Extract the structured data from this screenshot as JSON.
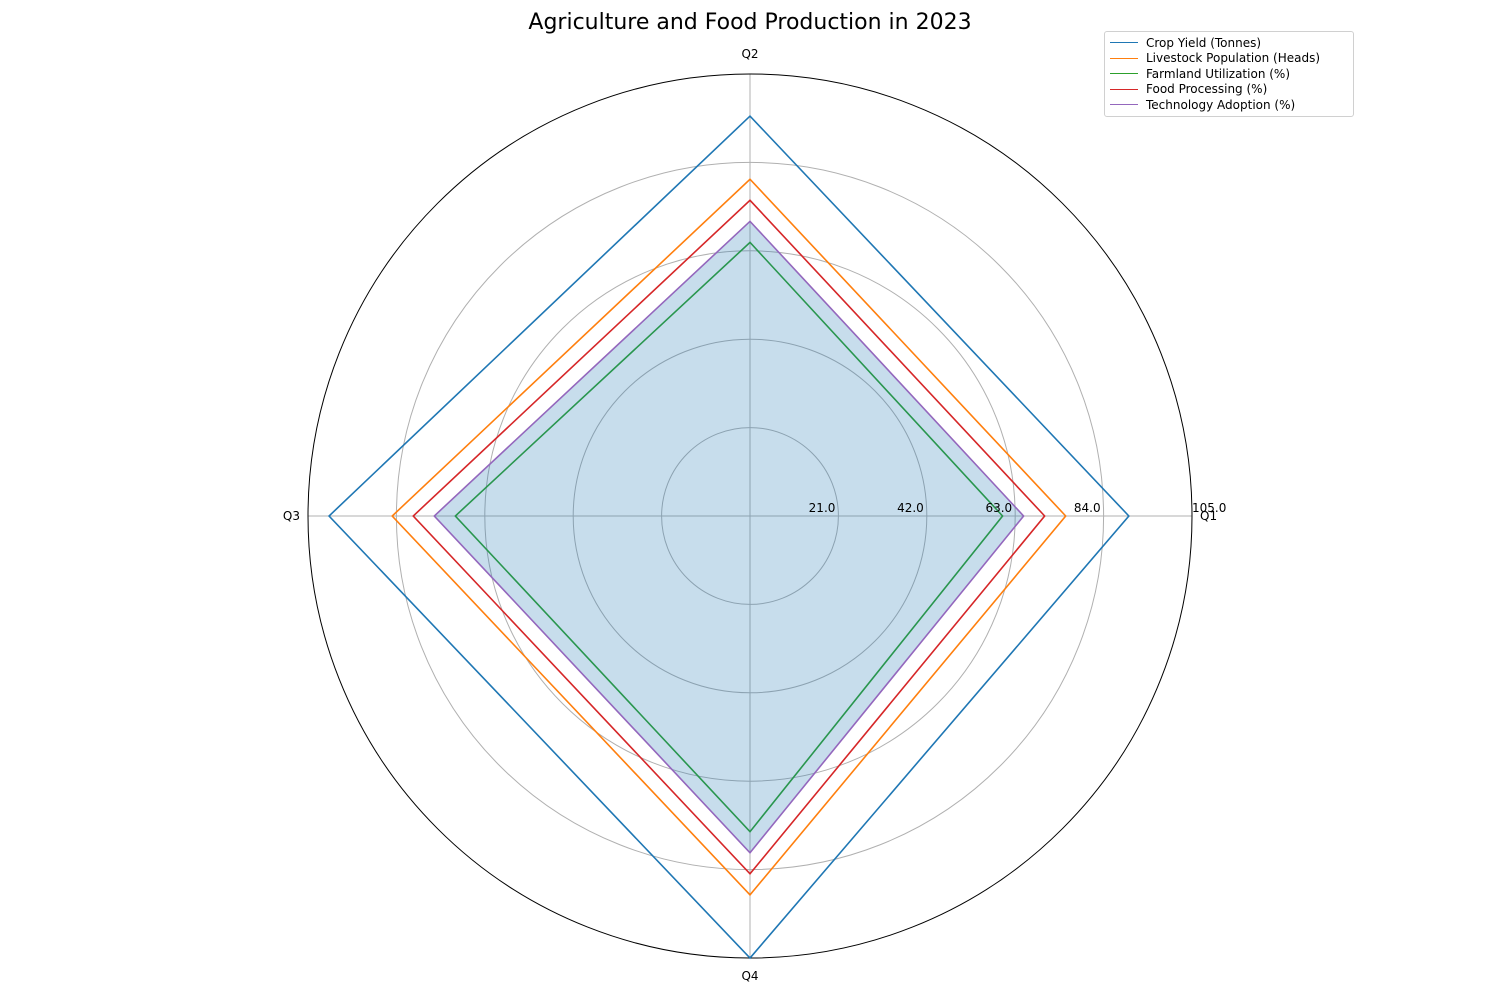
{
  "chart_data": {
    "type": "radar",
    "title": "Agriculture and Food Production in 2023",
    "categories": [
      "Q1",
      "Q2",
      "Q3",
      "Q4"
    ],
    "radial_ticks": [
      "21.0",
      "42.0",
      "63.0",
      "84.0",
      "105.0"
    ],
    "rlim": [
      0,
      105
    ],
    "grid": true,
    "legend_position": "top-right",
    "series": [
      {
        "name": "Crop Yield (Tonnes)",
        "color": "#1f77b4",
        "values": [
          90,
          95,
          100,
          105
        ],
        "fill": false
      },
      {
        "name": "Livestock Population (Heads)",
        "color": "#ff7f0e",
        "values": [
          75,
          80,
          85,
          90
        ],
        "fill": false
      },
      {
        "name": "Farmland Utilization (%)",
        "color": "#2ca02c",
        "values": [
          60,
          65,
          70,
          75
        ],
        "fill": false
      },
      {
        "name": "Food Processing (%)",
        "color": "#d62728",
        "values": [
          70,
          75,
          80,
          85
        ],
        "fill": false
      },
      {
        "name": "Technology Adoption (%)",
        "color": "#9467bd",
        "values": [
          65,
          70,
          75,
          80
        ],
        "fill": true,
        "fill_color": "#1f77b4"
      }
    ]
  }
}
